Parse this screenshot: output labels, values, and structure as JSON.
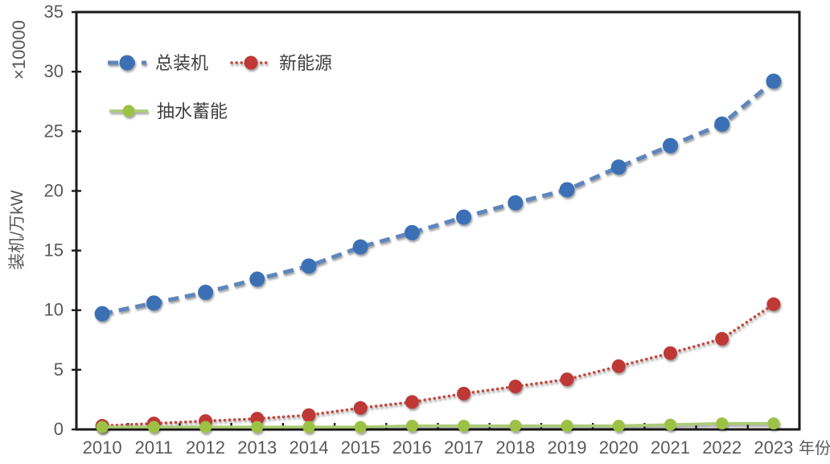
{
  "chart_data": {
    "type": "line",
    "title": "",
    "xlabel": "年份",
    "ylabel": "装机/万kW",
    "ylabel_multiplier": "×10000",
    "ylim": [
      0,
      35
    ],
    "yticks": [
      0,
      5,
      10,
      15,
      20,
      25,
      30,
      35
    ],
    "grid": false,
    "legend_position": "inside-top-left",
    "categories": [
      "2010",
      "2011",
      "2012",
      "2013",
      "2014",
      "2015",
      "2016",
      "2017",
      "2018",
      "2019",
      "2020",
      "2021",
      "2022",
      "2023"
    ],
    "series": [
      {
        "name": "总装机",
        "style": "dashed",
        "marker_color": "#3A6FB5",
        "line_color": "#5E86BC",
        "line_width": 5,
        "marker_radius": 9.5,
        "dash": "13 8",
        "values": [
          9.7,
          10.6,
          11.5,
          12.6,
          13.7,
          15.3,
          16.5,
          17.8,
          19.0,
          20.1,
          22.0,
          23.8,
          25.6,
          29.2
        ]
      },
      {
        "name": "新能源",
        "style": "dotted",
        "marker_color": "#BE3734",
        "line_color": "#C24A41",
        "line_width": 3.6,
        "marker_radius": 8.5,
        "dash": "0.1 6",
        "values": [
          0.3,
          0.5,
          0.7,
          0.9,
          1.2,
          1.8,
          2.3,
          3.0,
          3.6,
          4.2,
          5.3,
          6.4,
          7.6,
          10.5
        ]
      },
      {
        "name": "抽水蓄能",
        "style": "solid",
        "marker_color": "#9CC145",
        "line_color": "#ABCB74",
        "line_width": 3.5,
        "marker_radius": 7.5,
        "dash": "",
        "values": [
          0.2,
          0.2,
          0.2,
          0.2,
          0.2,
          0.2,
          0.3,
          0.3,
          0.3,
          0.3,
          0.3,
          0.4,
          0.5,
          0.5
        ]
      }
    ]
  },
  "theme": {
    "background": "#ffffff",
    "axis_color": "#1a1a1a",
    "tick_label_color": "#595959",
    "axis_title_color": "#595959",
    "legend_text_color": "#3f3f3f"
  }
}
